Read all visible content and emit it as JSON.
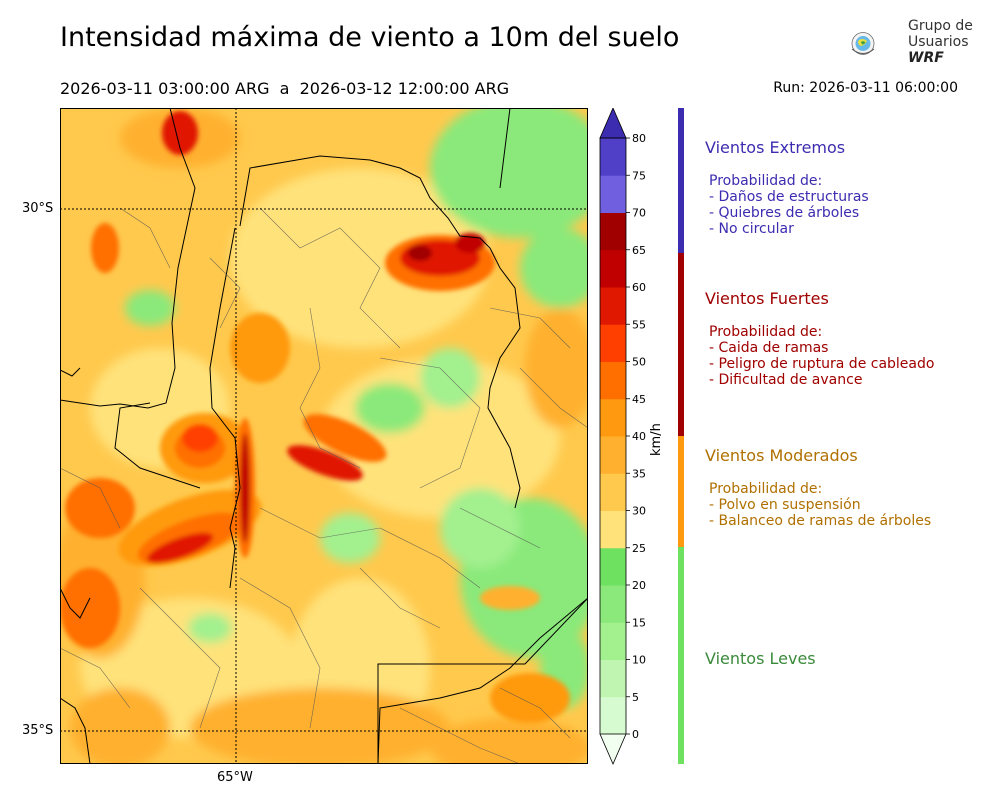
{
  "title": "Intensidad máxima de viento a 10m del suelo",
  "period": "2026-03-11 03:00:00 ARG  a  2026-03-12 12:00:00 ARG",
  "run": "Run: 2026-03-11 06:00:00",
  "logo": {
    "line1": "Grupo de",
    "line2": "Usuarios",
    "line3": "WRF"
  },
  "map": {
    "lat_labels": [
      "30°S",
      "35°S"
    ],
    "lon_labels": [
      "65°W"
    ]
  },
  "colorbar": {
    "unit": "km/h",
    "ticks": [
      "0",
      "5",
      "10",
      "15",
      "20",
      "25",
      "30",
      "35",
      "40",
      "45",
      "50",
      "55",
      "60",
      "65",
      "70",
      "75",
      "80"
    ],
    "colors": [
      "#f0fff0",
      "#d7fbd0",
      "#bff5b0",
      "#a3f08f",
      "#8ae97a",
      "#6ee160",
      "#ffe27a",
      "#ffc94d",
      "#ffb02e",
      "#ff9a10",
      "#ff6f00",
      "#ff3f00",
      "#e01800",
      "#c00000",
      "#a00000",
      "#7060e0",
      "#5040c8",
      "#3c2cb0"
    ]
  },
  "categories": [
    {
      "title": "Vientos Extremos",
      "color": "#3c2cb0",
      "lines": [
        "Probabilidad de:",
        "- Daños de estructuras",
        "- Quiebres de árboles",
        "- No circular"
      ]
    },
    {
      "title": "Vientos Fuertes",
      "color": "#a00000",
      "lines": [
        "Probabilidad de:",
        "- Caida de ramas",
        "- Peligro de ruptura de cableado",
        "- Dificultad de avance"
      ]
    },
    {
      "title": "Vientos Moderados",
      "color": "#b07000",
      "lines": [
        "Probabilidad de:",
        "- Polvo en suspensión",
        "- Balanceo de ramas de árboles"
      ]
    },
    {
      "title": "Vientos Leves",
      "color": "#3a8a3a",
      "lines": []
    }
  ]
}
